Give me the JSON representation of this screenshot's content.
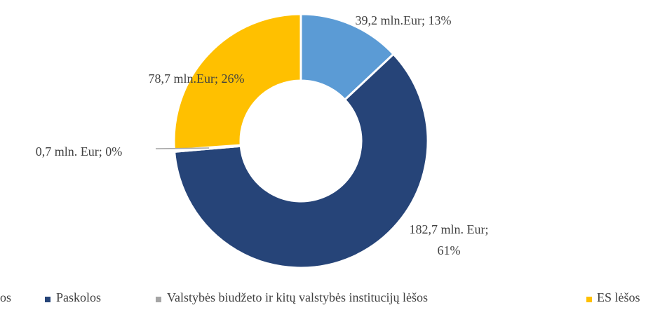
{
  "chart_data": {
    "type": "donut",
    "categories": [
      "os",
      "Paskolos",
      "Valstybės biudžeto ir kitų valstybės institucijų lėšos",
      "ES lėšos"
    ],
    "values": [
      39.2,
      182.7,
      0.7,
      78.7
    ],
    "value_labels": [
      "39,2 mln.Eur; 13%",
      "182,7 mln. Eur; 61%",
      "0,7 mln. Eur; 0%",
      "78,7 mln.Eur; 26%"
    ],
    "colors": [
      "#5b9bd5",
      "#264478",
      "#a5a5a5",
      "#ffc000"
    ],
    "legend": "bottom"
  }
}
